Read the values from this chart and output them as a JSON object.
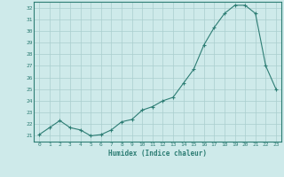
{
  "x": [
    0,
    1,
    2,
    3,
    4,
    5,
    6,
    7,
    8,
    9,
    10,
    11,
    12,
    13,
    14,
    15,
    16,
    17,
    18,
    19,
    20,
    21,
    22,
    23
  ],
  "y": [
    21.1,
    21.7,
    22.3,
    21.7,
    21.5,
    21.0,
    21.1,
    21.5,
    22.2,
    22.4,
    23.2,
    23.5,
    24.0,
    24.3,
    25.5,
    26.7,
    28.8,
    30.3,
    31.5,
    32.2,
    32.2,
    31.5,
    27.0,
    25.0
  ],
  "xlabel": "Humidex (Indice chaleur)",
  "ylabel": "",
  "xlim": [
    -0.5,
    23.5
  ],
  "ylim": [
    20.5,
    32.5
  ],
  "yticks": [
    21,
    22,
    23,
    24,
    25,
    26,
    27,
    28,
    29,
    30,
    31,
    32
  ],
  "xticks": [
    0,
    1,
    2,
    3,
    4,
    5,
    6,
    7,
    8,
    9,
    10,
    11,
    12,
    13,
    14,
    15,
    16,
    17,
    18,
    19,
    20,
    21,
    22,
    23
  ],
  "line_color": "#2d7d74",
  "bg_color": "#ceeaea",
  "grid_color": "#aacece",
  "xlabel_color": "#2d7d74",
  "tick_color": "#2d7d74",
  "spine_color": "#2d7d74"
}
